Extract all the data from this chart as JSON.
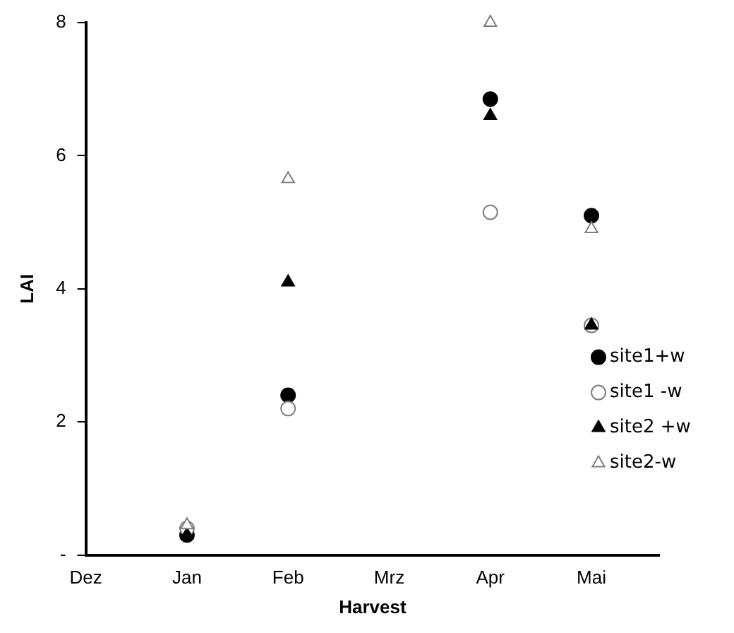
{
  "chart_data": {
    "type": "scatter",
    "xlabel": "Harvest",
    "ylabel": "LAI",
    "categories": [
      "Dez",
      "Jan",
      "Feb",
      "Mrz",
      "Apr",
      "Mai"
    ],
    "ylim": [
      0,
      8
    ],
    "yticks": [
      {
        "value": 0,
        "label": "-"
      },
      2,
      4,
      6,
      8
    ],
    "grid": false,
    "legend": "right",
    "series": [
      {
        "name": "site1+w",
        "color": "#000000",
        "marker": "circle",
        "x": [
          "Jan",
          "Feb",
          "Apr",
          "Mai"
        ],
        "values": [
          0.3,
          2.4,
          6.85,
          5.1
        ]
      },
      {
        "name": "site1 -w",
        "color": "#ffffff",
        "marker": "circle",
        "x": [
          "Jan",
          "Feb",
          "Apr",
          "Mai"
        ],
        "values": [
          0.4,
          2.2,
          5.15,
          3.45
        ]
      },
      {
        "name": "site2 +w",
        "color": "#000000",
        "marker": "triangle",
        "x": [
          "Jan",
          "Feb",
          "Apr",
          "Mai"
        ],
        "values": [
          0.3,
          4.1,
          6.6,
          3.45
        ]
      },
      {
        "name": "site2-w",
        "color": "#ffffff",
        "marker": "triangle",
        "x": [
          "Jan",
          "Feb",
          "Apr",
          "Mai"
        ],
        "values": [
          0.45,
          5.65,
          8.0,
          4.9
        ]
      }
    ]
  }
}
